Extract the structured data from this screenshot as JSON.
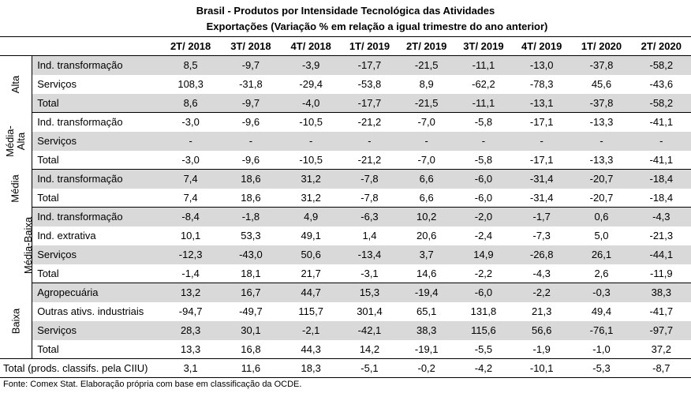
{
  "title": "Brasil - Produtos por Intensidade Tecnológica das Atividades",
  "subtitle": "Exportações (Variação % em relação a igual trimestre do ano anterior)",
  "columns": [
    "2T/ 2018",
    "3T/ 2018",
    "4T/ 2018",
    "1T/ 2019",
    "2T/ 2019",
    "3T/ 2019",
    "4T/ 2019",
    "1T/ 2020",
    "2T/ 2020"
  ],
  "groups": [
    {
      "name": "Alta",
      "rows": [
        {
          "label": "Ind. transformação",
          "shade": true,
          "values": [
            "8,5",
            "-9,7",
            "-3,9",
            "-17,7",
            "-21,5",
            "-11,1",
            "-13,0",
            "-37,8",
            "-58,2"
          ]
        },
        {
          "label": "Serviços",
          "shade": false,
          "values": [
            "108,3",
            "-31,8",
            "-29,4",
            "-53,8",
            "8,9",
            "-62,2",
            "-78,3",
            "45,6",
            "-43,6"
          ]
        },
        {
          "label": "Total",
          "shade": true,
          "values": [
            "8,6",
            "-9,7",
            "-4,0",
            "-17,7",
            "-21,5",
            "-11,1",
            "-13,1",
            "-37,8",
            "-58,2"
          ]
        }
      ]
    },
    {
      "name": "Média-\nAlta",
      "rows": [
        {
          "label": "Ind. transformação",
          "shade": false,
          "values": [
            "-3,0",
            "-9,6",
            "-10,5",
            "-21,2",
            "-7,0",
            "-5,8",
            "-17,1",
            "-13,3",
            "-41,1"
          ]
        },
        {
          "label": "Serviços",
          "shade": true,
          "values": [
            "-",
            "-",
            "-",
            "-",
            "-",
            "-",
            "-",
            "-",
            "-"
          ]
        },
        {
          "label": "Total",
          "shade": false,
          "values": [
            "-3,0",
            "-9,6",
            "-10,5",
            "-21,2",
            "-7,0",
            "-5,8",
            "-17,1",
            "-13,3",
            "-41,1"
          ]
        }
      ]
    },
    {
      "name": "Média",
      "rows": [
        {
          "label": "Ind. transformação",
          "shade": true,
          "values": [
            "7,4",
            "18,6",
            "31,2",
            "-7,8",
            "6,6",
            "-6,0",
            "-31,4",
            "-20,7",
            "-18,4"
          ]
        },
        {
          "label": "Total",
          "shade": false,
          "values": [
            "7,4",
            "18,6",
            "31,2",
            "-7,8",
            "6,6",
            "-6,0",
            "-31,4",
            "-20,7",
            "-18,4"
          ]
        }
      ]
    },
    {
      "name": "Média-Baixa",
      "rows": [
        {
          "label": "Ind. transformação",
          "shade": true,
          "values": [
            "-8,4",
            "-1,8",
            "4,9",
            "-6,3",
            "10,2",
            "-2,0",
            "-1,7",
            "0,6",
            "-4,3"
          ]
        },
        {
          "label": "Ind. extrativa",
          "shade": false,
          "values": [
            "10,1",
            "53,3",
            "49,1",
            "1,4",
            "20,6",
            "-2,4",
            "-7,3",
            "5,0",
            "-21,3"
          ]
        },
        {
          "label": "Serviços",
          "shade": true,
          "values": [
            "-12,3",
            "-43,0",
            "50,6",
            "-13,4",
            "3,7",
            "14,9",
            "-26,8",
            "26,1",
            "-44,1"
          ]
        },
        {
          "label": "Total",
          "shade": false,
          "values": [
            "-1,4",
            "18,1",
            "21,7",
            "-3,1",
            "14,6",
            "-2,2",
            "-4,3",
            "2,6",
            "-11,9"
          ]
        }
      ]
    },
    {
      "name": "Baixa",
      "rows": [
        {
          "label": "Agropecuária",
          "shade": true,
          "values": [
            "13,2",
            "16,7",
            "44,7",
            "15,3",
            "-19,4",
            "-6,0",
            "-2,2",
            "-0,3",
            "38,3"
          ]
        },
        {
          "label": "Outras ativs. industriais",
          "shade": false,
          "values": [
            "-94,7",
            "-49,7",
            "115,7",
            "301,4",
            "65,1",
            "131,8",
            "21,3",
            "49,4",
            "-41,7"
          ]
        },
        {
          "label": "Serviços",
          "shade": true,
          "values": [
            "28,3",
            "30,1",
            "-2,1",
            "-42,1",
            "38,3",
            "115,6",
            "56,6",
            "-76,1",
            "-97,7"
          ]
        },
        {
          "label": "Total",
          "shade": false,
          "values": [
            "13,3",
            "16,8",
            "44,3",
            "14,2",
            "-19,1",
            "-5,5",
            "-1,9",
            "-1,0",
            "37,2"
          ]
        }
      ]
    }
  ],
  "grand_total": {
    "label": "Total (prods. classifs. pela CIIU)",
    "values": [
      "3,1",
      "11,6",
      "18,3",
      "-5,1",
      "-0,2",
      "-4,2",
      "-10,1",
      "-5,3",
      "-8,7"
    ]
  },
  "source": "Fonte: Comex Stat. Elaboração própria com base em classificação da OCDE.",
  "colors": {
    "shade": "#d9d9d9",
    "border": "#000000",
    "background": "#ffffff"
  }
}
